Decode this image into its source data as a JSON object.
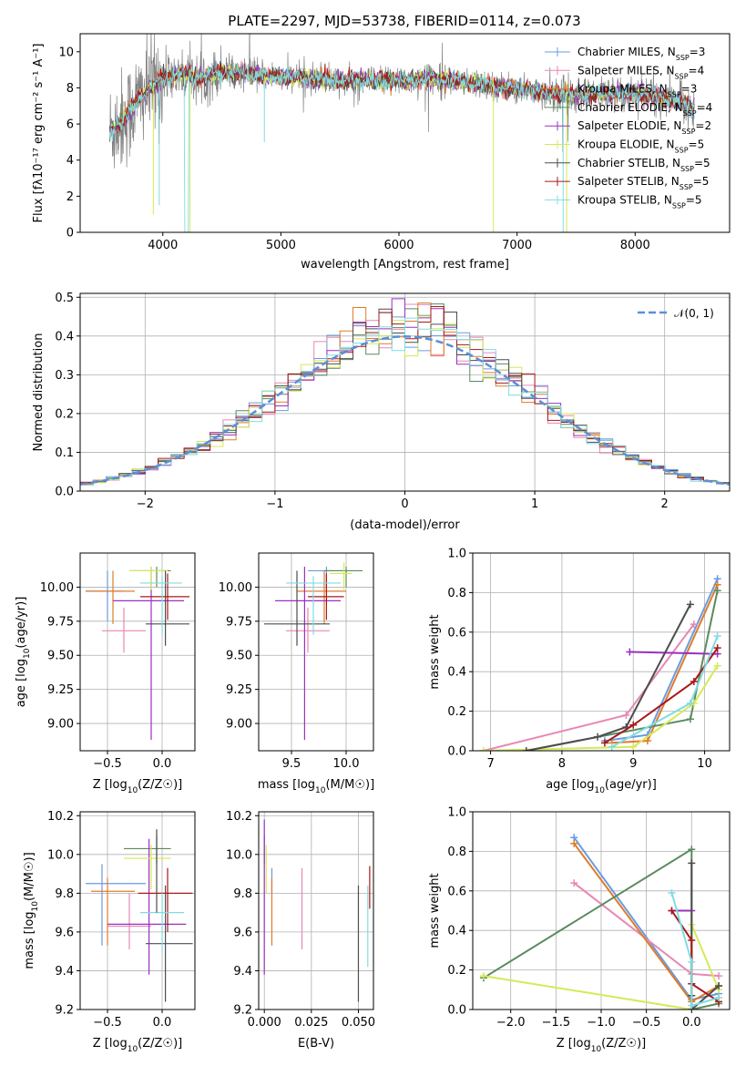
{
  "figure_title": "PLATE=2297, MJD=53738, FIBERID=0114, z=0.073",
  "colors": {
    "chabrier_miles": "#6a9be0",
    "salpeter_miles": "#e887b5",
    "kroupa_miles": "#e07b2a",
    "chabrier_elodie": "#5a8a5c",
    "salpeter_elodie": "#9b30c0",
    "kroupa_elodie": "#d4ea55",
    "chabrier_stelib": "#4d4d4d",
    "salpeter_stelib": "#a81818",
    "kroupa_stelib": "#80dce0",
    "data": "#808080",
    "gaussian": "#5b8fd8"
  },
  "chart_data": [
    {
      "id": "spectrum",
      "type": "line",
      "xlabel": "wavelength [Angstrom, rest frame]",
      "ylabel": "Flux [fλ10⁻¹⁷ erg cm⁻² s⁻¹ A⁻¹]",
      "xlim": [
        3300,
        8800
      ],
      "ylim": [
        0,
        11
      ],
      "xticks": [
        4000,
        5000,
        6000,
        7000,
        8000
      ],
      "yticks": [
        0,
        2,
        4,
        6,
        8,
        10
      ],
      "grid": false,
      "legend_position": "top-right",
      "continuum_model": {
        "x": [
          3550,
          3600,
          3700,
          3800,
          3900,
          4000,
          4100,
          4200,
          4300,
          4500,
          4700,
          5000,
          5500,
          6000,
          6300,
          6600,
          6800,
          7000,
          7300,
          7500,
          7800,
          8000,
          8200,
          8400,
          8500
        ],
        "y": [
          5.6,
          5.9,
          6.5,
          7.4,
          8.1,
          8.5,
          8.7,
          8.8,
          8.5,
          8.9,
          8.8,
          8.6,
          8.4,
          8.4,
          8.5,
          8.3,
          8.1,
          8.0,
          7.7,
          7.6,
          7.7,
          7.7,
          7.5,
          7.2,
          6.9
        ]
      },
      "series": [
        {
          "name": "Chabrier MILES, N_SSP=3",
          "color_key": "chabrier_miles"
        },
        {
          "name": "Salpeter MILES, N_SSP=4",
          "color_key": "salpeter_miles"
        },
        {
          "name": "Kroupa MILES, N_SSP=3",
          "color_key": "kroupa_miles"
        },
        {
          "name": "Chabrier ELODIE, N_SSP=4",
          "color_key": "chabrier_elodie"
        },
        {
          "name": "Salpeter ELODIE, N_SSP=2",
          "color_key": "salpeter_elodie"
        },
        {
          "name": "Kroupa ELODIE, N_SSP=5",
          "color_key": "kroupa_elodie"
        },
        {
          "name": "Chabrier STELIB, N_SSP=5",
          "color_key": "chabrier_stelib"
        },
        {
          "name": "Salpeter STELIB, N_SSP=5",
          "color_key": "salpeter_stelib"
        },
        {
          "name": "Kroupa STELIB, N_SSP=5",
          "color_key": "kroupa_stelib"
        }
      ]
    },
    {
      "id": "residuals",
      "type": "line",
      "xlabel": "(data-model)/error",
      "ylabel": "Normed distribution",
      "xlim": [
        -2.5,
        2.5
      ],
      "ylim": [
        0,
        0.51
      ],
      "xticks": [
        -2,
        -1,
        0,
        1,
        2
      ],
      "yticks": [
        0.0,
        0.1,
        0.2,
        0.3,
        0.4,
        0.5
      ],
      "grid": true,
      "legend_position": "top-right",
      "gaussian_label": "𝒩(0, 1)",
      "bin_width": 0.1
    },
    {
      "id": "age_vs_Z",
      "type": "scatter",
      "xlabel": "Z [log10(Z/Z☉)]",
      "ylabel": "age  [log10(age/yr)]",
      "xlim": [
        -0.75,
        0.3
      ],
      "ylim": [
        8.8,
        10.25
      ],
      "xticks": [
        -0.5,
        0.0
      ],
      "yticks": [
        9.0,
        9.25,
        9.5,
        9.75,
        10.0
      ],
      "grid": true,
      "points": [
        {
          "c": "chabrier_miles",
          "x": -0.5,
          "y": 9.97,
          "xl": -0.7,
          "xh": -0.35,
          "yl": 9.75,
          "yh": 10.12
        },
        {
          "c": "salpeter_miles",
          "x": -0.35,
          "y": 9.68,
          "xl": -0.55,
          "xh": -0.15,
          "yl": 9.52,
          "yh": 9.85
        },
        {
          "c": "kroupa_miles",
          "x": -0.45,
          "y": 9.97,
          "xl": -0.7,
          "xh": -0.25,
          "yl": 9.73,
          "yh": 10.12
        },
        {
          "c": "chabrier_elodie",
          "x": -0.05,
          "y": 10.12,
          "xl": -0.3,
          "xh": 0.08,
          "yl": 10.0,
          "yh": 10.15
        },
        {
          "c": "salpeter_elodie",
          "x": -0.1,
          "y": 9.9,
          "xl": -0.45,
          "xh": 0.2,
          "yl": 8.88,
          "yh": 10.15
        },
        {
          "c": "kroupa_elodie",
          "x": -0.1,
          "y": 10.12,
          "xl": -0.3,
          "xh": 0.05,
          "yl": 9.98,
          "yh": 10.15
        },
        {
          "c": "chabrier_stelib",
          "x": 0.03,
          "y": 9.73,
          "xl": -0.15,
          "xh": 0.25,
          "yl": 9.57,
          "yh": 10.12
        },
        {
          "c": "salpeter_stelib",
          "x": 0.05,
          "y": 9.93,
          "xl": -0.2,
          "xh": 0.25,
          "yl": 9.76,
          "yh": 10.1
        },
        {
          "c": "kroupa_stelib",
          "x": 0.0,
          "y": 10.03,
          "xl": -0.2,
          "xh": 0.18,
          "yl": 9.65,
          "yh": 10.08
        }
      ]
    },
    {
      "id": "age_vs_mass",
      "type": "scatter",
      "xlabel": "mass [log10(M/M☉)]",
      "ylabel": "",
      "xlim": [
        9.2,
        10.25
      ],
      "ylim": [
        8.8,
        10.25
      ],
      "xticks": [
        9.5,
        10.0
      ],
      "yticks": [
        9.0,
        9.25,
        9.5,
        9.75,
        10.0
      ],
      "grid": true,
      "points": [
        {
          "c": "chabrier_miles",
          "x": 9.82,
          "y": 10.12,
          "xl": 9.65,
          "xh": 10.0,
          "yl": 9.97,
          "yh": 10.15
        },
        {
          "c": "salpeter_miles",
          "x": 9.65,
          "y": 9.68,
          "xl": 9.45,
          "xh": 9.85,
          "yl": 9.52,
          "yh": 9.85
        },
        {
          "c": "kroupa_miles",
          "x": 9.8,
          "y": 9.97,
          "xl": 9.55,
          "xh": 10.0,
          "yl": 9.73,
          "yh": 10.12
        },
        {
          "c": "chabrier_elodie",
          "x": 10.0,
          "y": 10.12,
          "xl": 9.8,
          "xh": 10.15,
          "yl": 10.0,
          "yh": 10.15
        },
        {
          "c": "salpeter_elodie",
          "x": 9.62,
          "y": 9.9,
          "xl": 9.35,
          "xh": 9.95,
          "yl": 8.88,
          "yh": 10.15
        },
        {
          "c": "kroupa_elodie",
          "x": 9.98,
          "y": 10.1,
          "xl": 9.85,
          "xh": 10.05,
          "yl": 9.98,
          "yh": 10.18
        },
        {
          "c": "chabrier_stelib",
          "x": 9.55,
          "y": 9.73,
          "xl": 9.25,
          "xh": 9.85,
          "yl": 9.57,
          "yh": 10.12
        },
        {
          "c": "salpeter_stelib",
          "x": 9.82,
          "y": 9.93,
          "xl": 9.65,
          "xh": 9.98,
          "yl": 9.76,
          "yh": 10.1
        },
        {
          "c": "kroupa_stelib",
          "x": 9.7,
          "y": 10.03,
          "xl": 9.45,
          "xh": 9.95,
          "yl": 9.65,
          "yh": 10.08
        }
      ]
    },
    {
      "id": "mass_weight_vs_age",
      "type": "line",
      "xlabel": "age  [log10(age/yr)]",
      "ylabel": "mass weight",
      "xlim": [
        6.75,
        10.35
      ],
      "ylim": [
        0,
        1.0
      ],
      "xticks": [
        7,
        8,
        9,
        10
      ],
      "yticks": [
        0.0,
        0.2,
        0.4,
        0.6,
        0.8,
        1.0
      ],
      "grid": true,
      "series": [
        {
          "c": "chabrier_miles",
          "x": [
            8.6,
            9.2,
            10.18
          ],
          "y": [
            0.05,
            0.08,
            0.87
          ]
        },
        {
          "c": "salpeter_miles",
          "x": [
            6.9,
            8.9,
            9.85
          ],
          "y": [
            0.0,
            0.18,
            0.64
          ]
        },
        {
          "c": "kroupa_miles",
          "x": [
            8.7,
            9.2,
            10.18
          ],
          "y": [
            0.04,
            0.05,
            0.84
          ]
        },
        {
          "c": "chabrier_elodie",
          "x": [
            7.5,
            9.8,
            10.18
          ],
          "y": [
            0.0,
            0.16,
            0.81
          ]
        },
        {
          "c": "salpeter_elodie",
          "x": [
            8.95,
            10.18
          ],
          "y": [
            0.5,
            0.49
          ]
        },
        {
          "c": "kroupa_elodie",
          "x": [
            6.9,
            9.0,
            9.85,
            10.18
          ],
          "y": [
            0.0,
            0.02,
            0.24,
            0.43
          ]
        },
        {
          "c": "chabrier_stelib",
          "x": [
            7.5,
            8.5,
            8.9,
            9.8
          ],
          "y": [
            0.0,
            0.07,
            0.12,
            0.74
          ]
        },
        {
          "c": "salpeter_stelib",
          "x": [
            8.6,
            9.0,
            9.85,
            10.18
          ],
          "y": [
            0.04,
            0.13,
            0.35,
            0.52
          ]
        },
        {
          "c": "kroupa_stelib",
          "x": [
            8.7,
            9.8,
            10.18
          ],
          "y": [
            0.02,
            0.24,
            0.58
          ]
        }
      ]
    },
    {
      "id": "mass_vs_Z",
      "type": "scatter",
      "xlabel": "Z [log10(Z/Z☉)]",
      "ylabel": "mass [log10(M/M☉)]",
      "xlim": [
        -0.75,
        0.3
      ],
      "ylim": [
        9.2,
        10.22
      ],
      "xticks": [
        -0.5,
        0.0
      ],
      "yticks": [
        9.2,
        9.4,
        9.6,
        9.8,
        10.0,
        10.2
      ],
      "grid": true,
      "points": [
        {
          "c": "chabrier_miles",
          "x": -0.55,
          "y": 9.85,
          "xl": -0.7,
          "xh": -0.15,
          "yl": 9.53,
          "yh": 9.95
        },
        {
          "c": "salpeter_miles",
          "x": -0.3,
          "y": 9.63,
          "xl": -0.5,
          "xh": -0.1,
          "yl": 9.51,
          "yh": 9.8
        },
        {
          "c": "kroupa_miles",
          "x": -0.5,
          "y": 9.81,
          "xl": -0.65,
          "xh": -0.25,
          "yl": 9.53,
          "yh": 9.88
        },
        {
          "c": "chabrier_elodie",
          "x": -0.05,
          "y": 10.03,
          "xl": -0.35,
          "xh": 0.08,
          "yl": 9.95,
          "yh": 10.1
        },
        {
          "c": "salpeter_elodie",
          "x": -0.12,
          "y": 9.64,
          "xl": -0.5,
          "xh": 0.22,
          "yl": 9.38,
          "yh": 10.08
        },
        {
          "c": "kroupa_elodie",
          "x": -0.1,
          "y": 9.98,
          "xl": -0.35,
          "xh": 0.08,
          "yl": 9.82,
          "yh": 10.05
        },
        {
          "c": "chabrier_stelib",
          "x": 0.03,
          "y": 9.54,
          "xl": -0.15,
          "xh": 0.28,
          "yl": 9.24,
          "yh": 9.84
        },
        {
          "c": "salpeter_stelib",
          "x": 0.05,
          "y": 9.8,
          "xl": -0.22,
          "xh": 0.28,
          "yl": 9.6,
          "yh": 9.93
        },
        {
          "c": "kroupa_stelib",
          "x": 0.0,
          "y": 9.7,
          "xl": -0.2,
          "xh": 0.2,
          "yl": 9.5,
          "yh": 9.8
        },
        {
          "c": "chabrier_stelib",
          "x": -0.05,
          "y": 9.9,
          "xl": -0.05,
          "xh": -0.05,
          "yl": 9.7,
          "yh": 10.13
        }
      ]
    },
    {
      "id": "mass_vs_ebv",
      "type": "scatter",
      "xlabel": "E(B-V)",
      "ylabel": "",
      "xlim": [
        -0.003,
        0.058
      ],
      "ylim": [
        9.2,
        10.22
      ],
      "xticks": [
        0.0,
        0.025,
        0.05
      ],
      "yticks": [
        9.2,
        9.4,
        9.6,
        9.8,
        10.0,
        10.2
      ],
      "grid": true,
      "points": [
        {
          "c": "chabrier_miles",
          "x": 0.004,
          "y": 9.85,
          "xl": 0.004,
          "xh": 0.004,
          "yl": 9.8,
          "yh": 9.93
        },
        {
          "c": "salpeter_miles",
          "x": 0.02,
          "y": 9.7,
          "xl": 0.02,
          "xh": 0.02,
          "yl": 9.51,
          "yh": 9.93
        },
        {
          "c": "kroupa_miles",
          "x": 0.004,
          "y": 9.7,
          "xl": 0.004,
          "xh": 0.004,
          "yl": 9.53,
          "yh": 9.88
        },
        {
          "c": "chabrier_elodie",
          "x": 0.0,
          "y": 10.03,
          "xl": 0.0,
          "xh": 0.0,
          "yl": 9.95,
          "yh": 10.1
        },
        {
          "c": "salpeter_elodie",
          "x": 0.0,
          "y": 9.8,
          "xl": 0.0,
          "xh": 0.0,
          "yl": 9.38,
          "yh": 10.18
        },
        {
          "c": "kroupa_elodie",
          "x": 0.001,
          "y": 9.95,
          "xl": 0.001,
          "xh": 0.001,
          "yl": 9.8,
          "yh": 10.05
        },
        {
          "c": "chabrier_stelib",
          "x": 0.05,
          "y": 9.54,
          "xl": 0.05,
          "xh": 0.05,
          "yl": 9.24,
          "yh": 9.84
        },
        {
          "c": "salpeter_stelib",
          "x": 0.056,
          "y": 9.83,
          "xl": 0.056,
          "xh": 0.056,
          "yl": 9.72,
          "yh": 9.94
        },
        {
          "c": "kroupa_stelib",
          "x": 0.055,
          "y": 9.65,
          "xl": 0.055,
          "xh": 0.055,
          "yl": 9.42,
          "yh": 9.84
        }
      ]
    },
    {
      "id": "mass_weight_vs_Z",
      "type": "line",
      "xlabel": "Z [log10(Z/Z☉)]",
      "ylabel": "mass weight",
      "xlim": [
        -2.42,
        0.42
      ],
      "ylim": [
        0,
        1.0
      ],
      "xticks": [
        -2.0,
        -1.5,
        -1.0,
        -0.5,
        0.0
      ],
      "yticks": [
        0.0,
        0.2,
        0.4,
        0.6,
        0.8,
        1.0
      ],
      "grid": true,
      "series": [
        {
          "c": "chabrier_miles",
          "x": [
            -1.3,
            0.0,
            0.3
          ],
          "y": [
            0.87,
            0.05,
            0.08
          ]
        },
        {
          "c": "salpeter_miles",
          "x": [
            -1.3,
            0.0,
            0.3
          ],
          "y": [
            0.64,
            0.18,
            0.17
          ]
        },
        {
          "c": "kroupa_miles",
          "x": [
            -1.3,
            0.0,
            0.3
          ],
          "y": [
            0.84,
            0.04,
            0.12
          ]
        },
        {
          "c": "chabrier_elodie",
          "x": [
            -2.3,
            0.0,
            0.0,
            0.3
          ],
          "y": [
            0.16,
            0.81,
            0.0,
            0.03
          ]
        },
        {
          "c": "salpeter_elodie",
          "x": [
            -0.22,
            0.0
          ],
          "y": [
            0.5,
            0.5
          ]
        },
        {
          "c": "kroupa_elodie",
          "x": [
            -2.3,
            0.0,
            0.0,
            0.3
          ],
          "y": [
            0.17,
            0.0,
            0.43,
            0.1
          ]
        },
        {
          "c": "chabrier_stelib",
          "x": [
            0.0,
            0.0,
            0.0,
            0.3
          ],
          "y": [
            0.74,
            0.07,
            0.0,
            0.12
          ]
        },
        {
          "c": "salpeter_stelib",
          "x": [
            -0.22,
            0.0,
            0.0,
            0.3
          ],
          "y": [
            0.5,
            0.35,
            0.13,
            0.04
          ]
        },
        {
          "c": "kroupa_stelib",
          "x": [
            -0.22,
            0.0,
            0.0,
            0.3
          ],
          "y": [
            0.59,
            0.24,
            0.02,
            0.06
          ]
        }
      ]
    }
  ]
}
